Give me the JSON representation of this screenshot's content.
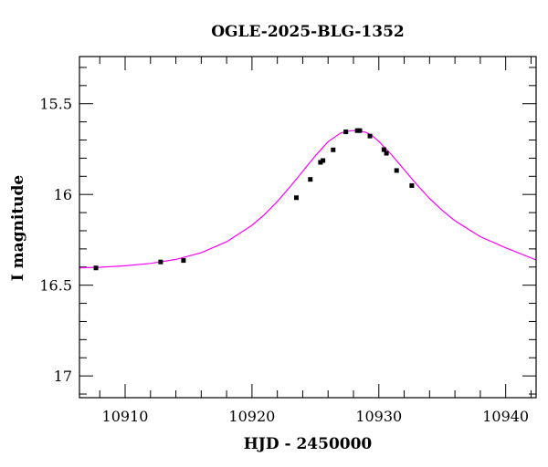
{
  "chart_data": {
    "type": "scatter",
    "title": "OGLE-2025-BLG-1352",
    "xlabel": "HJD - 2450000",
    "ylabel": "I magnitude",
    "xlim": [
      10906.4,
      10942.4
    ],
    "ylim": [
      17.12,
      15.24
    ],
    "y_inverted": true,
    "grid": false,
    "x_ticks_major": [
      10910,
      10920,
      10930,
      10940
    ],
    "x_tick_labels": [
      "10910",
      "10920",
      "10930",
      "10940"
    ],
    "y_ticks_major": [
      15.5,
      16,
      16.5,
      17
    ],
    "y_tick_labels": [
      "15.5",
      "16",
      "16.5",
      "17"
    ],
    "model_color": "#ff00ff",
    "point_color": "#000000",
    "model_curve": {
      "x": [
        10906.4,
        10908,
        10910,
        10912,
        10914,
        10916,
        10918,
        10920,
        10921,
        10922,
        10923,
        10924,
        10925,
        10926,
        10927,
        10927.5,
        10928,
        10928.5,
        10929,
        10929.5,
        10930,
        10931,
        10932,
        10933,
        10934,
        10935,
        10936,
        10938,
        10940,
        10942.4
      ],
      "y": [
        16.404,
        16.401,
        16.393,
        16.38,
        16.358,
        16.321,
        16.261,
        16.17,
        16.11,
        16.038,
        15.958,
        15.873,
        15.787,
        15.709,
        15.661,
        15.652,
        15.648,
        15.65,
        15.658,
        15.678,
        15.708,
        15.781,
        15.864,
        15.946,
        16.022,
        16.088,
        16.145,
        16.233,
        16.294,
        16.361
      ]
    },
    "series": [
      {
        "x": [
          10907.7,
          10912.8,
          10914.6,
          10923.5,
          10924.6,
          10925.4,
          10925.6,
          10926.4,
          10927.4,
          10928.3,
          10928.5,
          10929.3,
          10930.4,
          10930.6,
          10931.4,
          10932.6
        ],
        "y": [
          16.405,
          16.372,
          16.364,
          16.018,
          15.917,
          15.823,
          15.813,
          15.754,
          15.655,
          15.648,
          15.648,
          15.678,
          15.753,
          15.773,
          15.868,
          15.951
        ],
        "err": [
          0.007,
          0.007,
          0.007,
          0.007,
          0.007,
          0.009,
          0.009,
          0.007,
          0.007,
          0.007,
          0.007,
          0.007,
          0.009,
          0.009,
          0.007,
          0.007
        ]
      }
    ]
  }
}
